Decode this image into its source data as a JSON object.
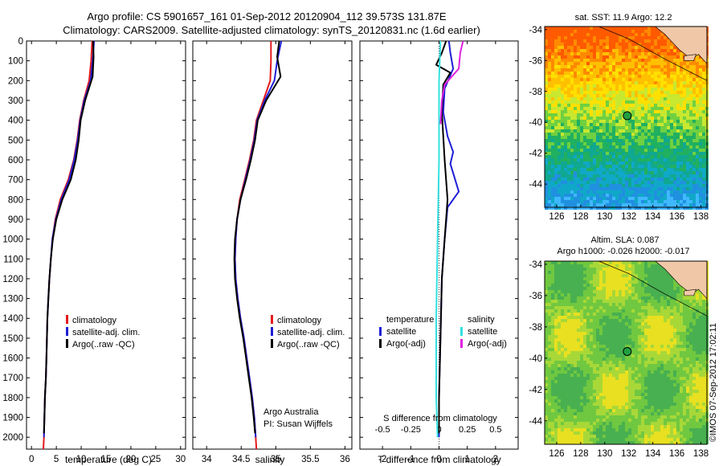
{
  "title": {
    "line1": "Argo profile: CS 5901657_161 01-Sep-2012 20120904_112 39.573S 131.87E",
    "line2": "Climatology: CARS2009. Satellite-adjusted climatology: synTS_20120831.nc (1.6d earlier)"
  },
  "colors": {
    "climatology": "#e41a1c",
    "satellite": "#1f1fd6",
    "argo": "#000000",
    "sal_satellite": "#33e0e0",
    "sal_argo": "#e020e0"
  },
  "depth_ticks": [
    "0",
    "100",
    "200",
    "300",
    "400",
    "500",
    "600",
    "700",
    "800",
    "900",
    "1000",
    "1100",
    "1200",
    "1300",
    "1400",
    "1500",
    "1600",
    "1700",
    "1800",
    "1900",
    "2000"
  ],
  "panels": {
    "temperature": {
      "xlabel": "temperature (deg C)",
      "xticks": [
        "0",
        "5",
        "10",
        "15",
        "20",
        "25",
        "30"
      ],
      "legend": [
        "climatology",
        "satellite-adj. clim.",
        "Argo(..raw -QC)"
      ]
    },
    "salinity": {
      "xlabel": "salinity",
      "xticks": [
        "34",
        "34.5",
        "35",
        "35.5",
        "36"
      ],
      "legend": [
        "climatology",
        "satellite-adj. clim.",
        "Argo(..raw -QC)"
      ],
      "note1": "Argo Australia",
      "note2": "PI: Susan Wijffels"
    },
    "difference": {
      "xlabel": "T difference from climatology",
      "xticks": [
        "-2",
        "-1",
        "0",
        "1",
        "2"
      ],
      "top_label": "S difference from climatology",
      "top_ticks": [
        "-0.5",
        "-0.25",
        "0",
        "0.25",
        "0.5"
      ],
      "legend_t_head": "temperature",
      "legend_s_head": "salinity",
      "legend_t": [
        "satellite",
        "Argo(-adj)"
      ],
      "legend_s": [
        "satellite",
        "Argo(-adj)"
      ]
    }
  },
  "maps": {
    "sst_title": "sat. SST: 11.9 Argo: 12.2",
    "sla_title1": "Altim. SLA: 0.087",
    "sla_title2": "Argo h1000: -0.026 h2000: -0.017",
    "lon_ticks": [
      "126",
      "128",
      "130",
      "132",
      "134",
      "136",
      "138"
    ],
    "lat_ticks": [
      "-34",
      "-36",
      "-38",
      "-40",
      "-42",
      "-44"
    ],
    "profile_lon": 131.87,
    "profile_lat": -39.573,
    "side_text": "©IMOS 07-Sep-2012 17:02:11"
  },
  "chart_data": [
    {
      "type": "line",
      "xlabel": "temperature (deg C)",
      "ylabel": "",
      "xlim": [
        -1,
        31
      ],
      "ylim": [
        2060,
        0
      ],
      "series": [
        {
          "name": "climatology",
          "points": [
            [
              12.2,
              0
            ],
            [
              12.0,
              100
            ],
            [
              11.6,
              200
            ],
            [
              10.5,
              300
            ],
            [
              9.7,
              400
            ],
            [
              9.2,
              500
            ],
            [
              8.5,
              600
            ],
            [
              7.4,
              700
            ],
            [
              5.8,
              800
            ],
            [
              4.8,
              900
            ],
            [
              4.2,
              1000
            ],
            [
              3.9,
              1100
            ],
            [
              3.6,
              1200
            ],
            [
              3.4,
              1300
            ],
            [
              3.2,
              1400
            ],
            [
              3.1,
              1500
            ],
            [
              3.0,
              1600
            ],
            [
              2.9,
              1700
            ],
            [
              2.7,
              1800
            ],
            [
              2.6,
              1900
            ],
            [
              2.5,
              2000
            ],
            [
              2.4,
              2060
            ]
          ]
        },
        {
          "name": "satellite-adj. clim.",
          "points": [
            [
              12.6,
              0
            ],
            [
              12.3,
              100
            ],
            [
              11.9,
              200
            ],
            [
              10.6,
              300
            ],
            [
              9.8,
              400
            ],
            [
              9.3,
              500
            ],
            [
              8.6,
              600
            ],
            [
              7.6,
              700
            ],
            [
              6.0,
              800
            ],
            [
              4.9,
              900
            ],
            [
              4.2,
              1000
            ],
            [
              3.9,
              1100
            ],
            [
              3.6,
              1200
            ],
            [
              3.4,
              1300
            ],
            [
              3.2,
              1400
            ],
            [
              3.1,
              1500
            ],
            [
              3.0,
              1600
            ],
            [
              2.9,
              1700
            ],
            [
              2.7,
              1800
            ],
            [
              2.6,
              1900
            ],
            [
              2.5,
              2000
            ]
          ]
        },
        {
          "name": "Argo(..raw -QC)",
          "points": [
            [
              12.4,
              0
            ],
            [
              12.5,
              80
            ],
            [
              12.3,
              180
            ],
            [
              10.8,
              300
            ],
            [
              9.9,
              400
            ],
            [
              9.5,
              500
            ],
            [
              8.9,
              600
            ],
            [
              7.9,
              700
            ],
            [
              6.2,
              800
            ],
            [
              5.0,
              900
            ],
            [
              4.3,
              1000
            ],
            [
              3.9,
              1100
            ],
            [
              3.6,
              1200
            ],
            [
              3.4,
              1300
            ],
            [
              3.2,
              1400
            ],
            [
              3.1,
              1500
            ],
            [
              3.0,
              1600
            ],
            [
              2.9,
              1700
            ],
            [
              2.7,
              1800
            ],
            [
              2.6,
              1900
            ],
            [
              2.5,
              1980
            ]
          ]
        }
      ]
    },
    {
      "type": "line",
      "xlabel": "salinity",
      "ylabel": "",
      "xlim": [
        33.8,
        36.1
      ],
      "ylim": [
        2060,
        0
      ],
      "series": [
        {
          "name": "climatology",
          "points": [
            [
              34.93,
              0
            ],
            [
              34.93,
              100
            ],
            [
              34.92,
              200
            ],
            [
              34.82,
              300
            ],
            [
              34.72,
              400
            ],
            [
              34.68,
              500
            ],
            [
              34.62,
              600
            ],
            [
              34.55,
              700
            ],
            [
              34.48,
              800
            ],
            [
              34.44,
              900
            ],
            [
              34.42,
              1000
            ],
            [
              34.41,
              1100
            ],
            [
              34.42,
              1200
            ],
            [
              34.45,
              1300
            ],
            [
              34.49,
              1400
            ],
            [
              34.54,
              1500
            ],
            [
              34.58,
              1600
            ],
            [
              34.62,
              1700
            ],
            [
              34.66,
              1800
            ],
            [
              34.69,
              1900
            ],
            [
              34.71,
              2000
            ],
            [
              34.72,
              2060
            ]
          ]
        },
        {
          "name": "satellite-adj. clim.",
          "points": [
            [
              35.08,
              0
            ],
            [
              35.02,
              100
            ],
            [
              34.98,
              200
            ],
            [
              34.84,
              300
            ],
            [
              34.73,
              400
            ],
            [
              34.69,
              500
            ],
            [
              34.63,
              600
            ],
            [
              34.56,
              700
            ],
            [
              34.49,
              800
            ],
            [
              34.44,
              900
            ],
            [
              34.42,
              1000
            ],
            [
              34.41,
              1100
            ],
            [
              34.42,
              1200
            ],
            [
              34.45,
              1300
            ],
            [
              34.49,
              1400
            ],
            [
              34.54,
              1500
            ],
            [
              34.58,
              1600
            ],
            [
              34.62,
              1700
            ],
            [
              34.66,
              1800
            ],
            [
              34.69,
              1900
            ],
            [
              34.71,
              2000
            ]
          ]
        },
        {
          "name": "Argo(..raw -QC)",
          "points": [
            [
              35.05,
              0
            ],
            [
              35.02,
              80
            ],
            [
              35.07,
              180
            ],
            [
              34.86,
              300
            ],
            [
              34.74,
              400
            ],
            [
              34.7,
              500
            ],
            [
              34.64,
              600
            ],
            [
              34.57,
              700
            ],
            [
              34.49,
              800
            ],
            [
              34.44,
              900
            ],
            [
              34.41,
              1000
            ],
            [
              34.4,
              1100
            ],
            [
              34.41,
              1200
            ],
            [
              34.44,
              1300
            ],
            [
              34.48,
              1400
            ],
            [
              34.53,
              1500
            ],
            [
              34.57,
              1600
            ],
            [
              34.61,
              1700
            ],
            [
              34.65,
              1800
            ],
            [
              34.68,
              1900
            ],
            [
              34.7,
              1980
            ]
          ]
        }
      ]
    },
    {
      "type": "line",
      "xlabel": "T difference from climatology",
      "ylabel": "",
      "xlim": [
        -2.8,
        2.8
      ],
      "ylim": [
        2060,
        0
      ],
      "series": [
        {
          "name": "temperature satellite",
          "points": [
            [
              0.35,
              0
            ],
            [
              0.4,
              60
            ],
            [
              0.5,
              140
            ],
            [
              0.2,
              240
            ],
            [
              0.15,
              360
            ],
            [
              0.3,
              480
            ],
            [
              0.5,
              560
            ],
            [
              0.4,
              620
            ],
            [
              0.7,
              760
            ],
            [
              0.3,
              840
            ],
            [
              0.2,
              1000
            ],
            [
              0.1,
              1200
            ],
            [
              0.05,
              1500
            ],
            [
              0.0,
              1800
            ],
            [
              0.0,
              2000
            ]
          ]
        },
        {
          "name": "temperature Argo(-adj)",
          "points": [
            [
              0.25,
              0
            ],
            [
              0.1,
              60
            ],
            [
              -0.1,
              120
            ],
            [
              0.4,
              160
            ],
            [
              0.15,
              220
            ],
            [
              0.1,
              360
            ],
            [
              0.2,
              600
            ],
            [
              0.3,
              800
            ],
            [
              0.2,
              1000
            ],
            [
              0.1,
              1200
            ],
            [
              0.05,
              1500
            ],
            [
              0.0,
              1800
            ],
            [
              0.0,
              1980
            ]
          ]
        },
        {
          "name": "salinity satellite",
          "points": [
            [
              0.05,
              0
            ],
            [
              0.0,
              200
            ],
            [
              0.0,
              600
            ],
            [
              -0.05,
              1000
            ],
            [
              -0.1,
              1400
            ],
            [
              -0.1,
              1800
            ],
            [
              -0.05,
              2000
            ]
          ]
        },
        {
          "name": "salinity Argo(-adj)",
          "points": [
            [
              0.85,
              0
            ],
            [
              0.75,
              60
            ],
            [
              0.7,
              140
            ],
            [
              0.2,
              220
            ],
            [
              0.1,
              300
            ],
            [
              0.05,
              420
            ]
          ]
        }
      ]
    }
  ]
}
